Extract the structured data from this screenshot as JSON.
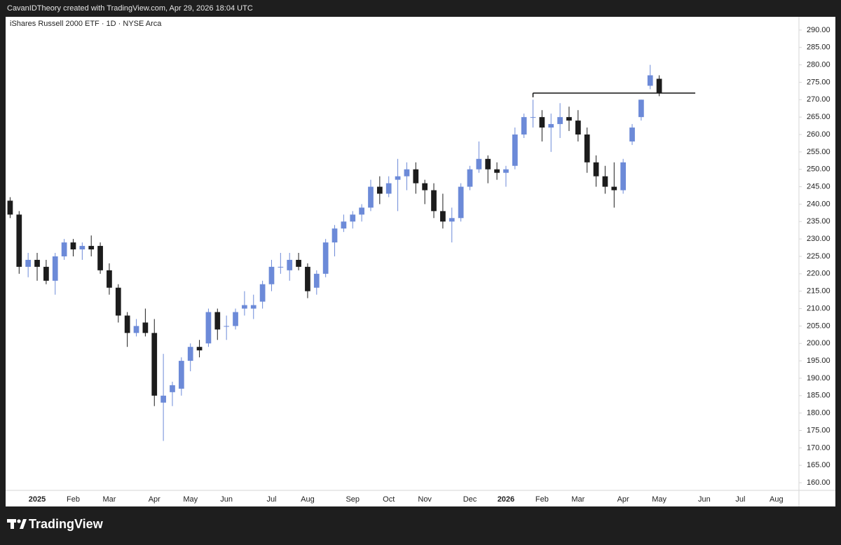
{
  "header": {
    "credit": "CavanIDTheory created with TradingView.com, Apr 29, 2026 18:04 UTC"
  },
  "footer": {
    "brand": "TradingView"
  },
  "chart_data": {
    "type": "candlestick",
    "title": "iShares Russell 2000 ETF · 1D · NYSE Arca",
    "categories": [
      null,
      null,
      null,
      "2025",
      null,
      null,
      null,
      "Feb",
      null,
      null,
      null,
      "Mar",
      null,
      null,
      null,
      null,
      "Apr",
      null,
      null,
      null,
      "May",
      null,
      null,
      null,
      "Jun",
      null,
      null,
      null,
      null,
      "Jul",
      null,
      null,
      null,
      "Aug",
      null,
      null,
      null,
      null,
      "Sep",
      null,
      null,
      null,
      "Oct",
      null,
      null,
      null,
      "Nov",
      null,
      null,
      null,
      null,
      "Dec",
      null,
      null,
      null,
      "2026",
      null,
      null,
      null,
      "Feb",
      null,
      null,
      null,
      "Mar",
      null,
      null,
      null,
      null,
      "Apr",
      null,
      null,
      null,
      "May",
      null,
      null,
      null,
      null,
      "Jun",
      null,
      null,
      null,
      "Jul",
      null,
      null,
      null,
      "Aug",
      null,
      null
    ],
    "open": [
      241,
      237,
      222,
      224,
      222,
      218,
      225,
      229,
      227,
      228,
      228,
      221,
      216,
      208,
      203,
      206,
      203,
      183,
      186,
      187,
      195,
      199,
      200,
      209,
      205,
      205,
      210,
      210,
      212,
      217,
      222,
      221,
      224,
      222,
      216,
      220,
      229,
      233,
      235,
      237,
      239,
      245,
      243,
      247,
      248,
      250,
      246,
      244,
      238,
      235,
      236,
      245,
      250,
      253,
      250,
      249,
      251,
      260,
      265,
      265,
      262,
      263,
      265,
      264,
      260,
      252,
      248,
      245,
      244,
      258,
      265,
      274,
      276,
      null,
      null,
      null,
      null,
      null,
      null,
      null,
      null,
      null,
      null,
      null,
      null,
      null,
      null,
      null
    ],
    "high": [
      242,
      238,
      226,
      226,
      224,
      226,
      230,
      230,
      229,
      231,
      229,
      223,
      217,
      209,
      207,
      210,
      207,
      197,
      189,
      196,
      200,
      201,
      210,
      210,
      208,
      210,
      215,
      214,
      218,
      224,
      226,
      226,
      226,
      223,
      221,
      230,
      234,
      237,
      238,
      240,
      247,
      248,
      248,
      253,
      252,
      252,
      247,
      246,
      243,
      239,
      246,
      251,
      258,
      254,
      252,
      251,
      262,
      266,
      270,
      267,
      266,
      269,
      268,
      267,
      262,
      254,
      251,
      252,
      253,
      263,
      270,
      280,
      277,
      null,
      null,
      null,
      null,
      null,
      null,
      null,
      null,
      null,
      null,
      null,
      null,
      null,
      null,
      null
    ],
    "low": [
      236,
      220,
      219,
      218,
      217,
      214,
      224,
      225,
      224,
      225,
      220,
      214,
      206,
      199,
      202,
      202,
      182,
      172,
      182,
      185,
      192,
      196,
      199,
      201,
      201,
      204,
      208,
      207,
      210,
      215,
      220,
      218,
      221,
      213,
      214,
      219,
      225,
      232,
      233,
      235,
      238,
      240,
      242,
      238,
      244,
      243,
      240,
      236,
      233,
      229,
      235,
      244,
      249,
      246,
      247,
      245,
      250,
      259,
      262,
      258,
      255,
      259,
      261,
      258,
      249,
      245,
      243,
      239,
      243,
      257,
      264,
      273,
      271,
      null,
      null,
      null,
      null,
      null,
      null,
      null,
      null,
      null,
      null,
      null,
      null,
      null,
      null,
      null
    ],
    "close": [
      237,
      222,
      224,
      222,
      218,
      225,
      229,
      227,
      228,
      227,
      221,
      216,
      208,
      203,
      205,
      203,
      185,
      185,
      188,
      195,
      199,
      198,
      209,
      204,
      205,
      209,
      211,
      211,
      217,
      222,
      222,
      224,
      222,
      215,
      220,
      229,
      233,
      235,
      237,
      239,
      245,
      243,
      246,
      248,
      250,
      246,
      244,
      238,
      235,
      236,
      245,
      250,
      253,
      250,
      249,
      250,
      260,
      265,
      265,
      262,
      263,
      265,
      264,
      260,
      252,
      248,
      245,
      244,
      252,
      262,
      270,
      277,
      272,
      null,
      null,
      null,
      null,
      null,
      null,
      null,
      null,
      null,
      null,
      null,
      null,
      null,
      null,
      null
    ],
    "up_color": "#6c8ad8",
    "down_color": "#1c1c1c",
    "hline": {
      "value": 271.9,
      "from": 58,
      "to": 76,
      "color": "#111111"
    },
    "ylim": [
      157.8,
      293.8
    ],
    "yticks": [
      {
        "value": 160,
        "label": "160.00"
      },
      {
        "value": 165,
        "label": "165.00"
      },
      {
        "value": 170,
        "label": "170.00"
      },
      {
        "value": 175,
        "label": "175.00"
      },
      {
        "value": 180,
        "label": "180.00"
      },
      {
        "value": 185,
        "label": "185.00"
      },
      {
        "value": 190,
        "label": "190.00"
      },
      {
        "value": 195,
        "label": "195.00"
      },
      {
        "value": 200,
        "label": "200.00"
      },
      {
        "value": 205,
        "label": "205.00"
      },
      {
        "value": 210,
        "label": "210.00"
      },
      {
        "value": 215,
        "label": "215.00"
      },
      {
        "value": 220,
        "label": "220.00"
      },
      {
        "value": 225,
        "label": "225.00"
      },
      {
        "value": 230,
        "label": "230.00"
      },
      {
        "value": 235,
        "label": "235.00"
      },
      {
        "value": 240,
        "label": "240.00"
      },
      {
        "value": 245,
        "label": "245.00"
      },
      {
        "value": 250,
        "label": "250.00"
      },
      {
        "value": 255,
        "label": "255.00"
      },
      {
        "value": 260,
        "label": "260.00"
      },
      {
        "value": 265,
        "label": "265.00"
      },
      {
        "value": 270,
        "label": "270.00"
      },
      {
        "value": 275,
        "label": "275.00"
      },
      {
        "value": 280,
        "label": "280.00"
      },
      {
        "value": 285,
        "label": "285.00"
      },
      {
        "value": 290,
        "label": "290.00"
      }
    ],
    "grid": false
  }
}
